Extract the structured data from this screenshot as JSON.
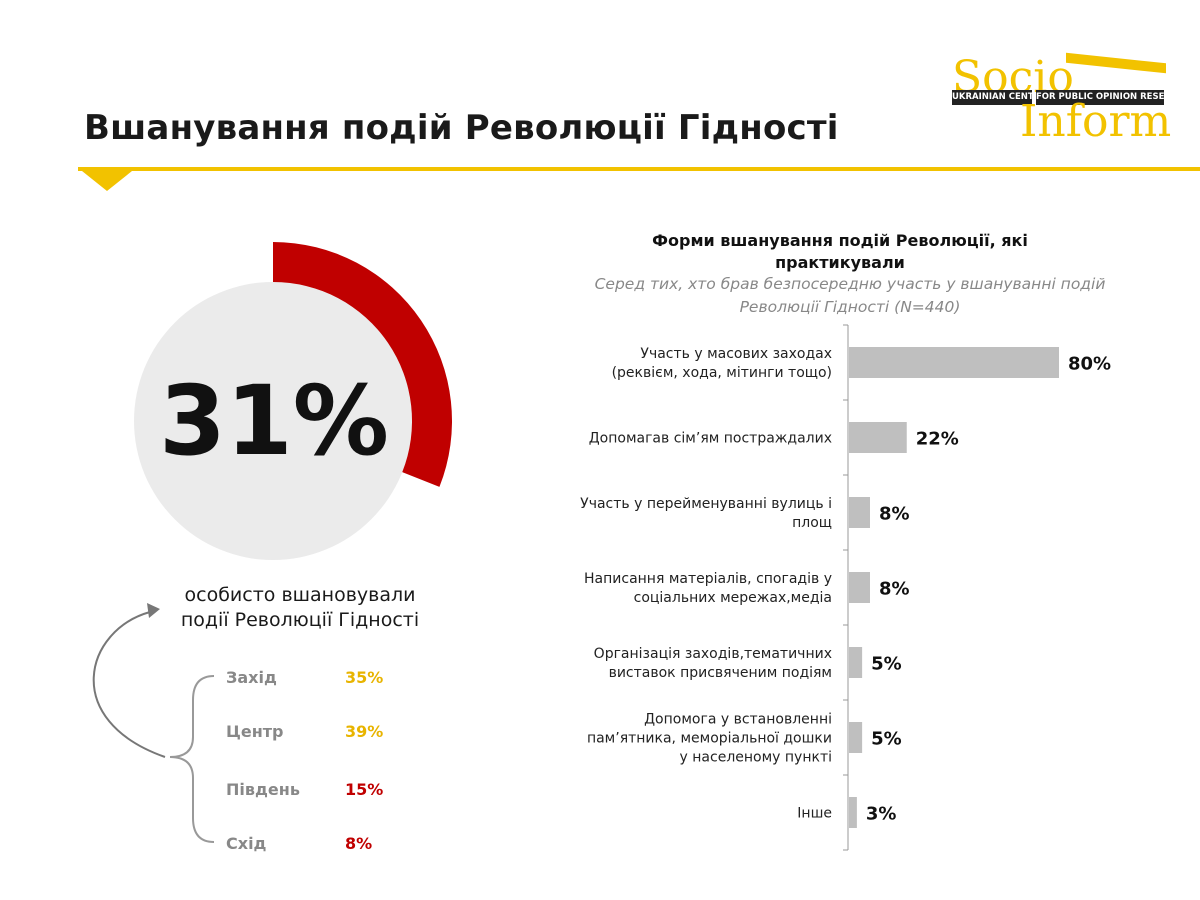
{
  "header": {
    "title": "Вшанування подій Революції Гідності"
  },
  "logo": {
    "top_text": "Socio",
    "bottom_text": "Inform",
    "band_left": "UKRAINIAN CENTER",
    "band_right": "FOR PUBLIC OPINION RESEARCH"
  },
  "overview": {
    "percent_label": "31%",
    "percent_value": 31,
    "caption_line1": "особисто вшановували",
    "caption_line2": "події Революції Гідності",
    "accent_color": "#c00000"
  },
  "regions": [
    {
      "name": "Захід",
      "value": "35%",
      "color": "#e8b400"
    },
    {
      "name": "Центр",
      "value": "39%",
      "color": "#e8b400"
    },
    {
      "name": "Південь",
      "value": "15%",
      "color": "#c00000"
    },
    {
      "name": "Схід",
      "value": "8%",
      "color": "#c00000"
    }
  ],
  "chart_data": {
    "type": "bar",
    "orientation": "horizontal",
    "title": "Форми вшанування подій Революції, які практикували",
    "subtitle": "Серед тих, хто брав безпосередню участь у вшануванні подій Революції Гідності (N=440)",
    "categories": [
      [
        "Участь у масових заходах",
        "(реквієм, хода, мітинги тощо)"
      ],
      [
        "Допомагав сім’ям постраждалих"
      ],
      [
        "Участь у перейменуванні вулиць і",
        "площ"
      ],
      [
        "Написання матеріалів, спогадів у",
        "соціальних мережах,медіа"
      ],
      [
        "Організація заходів,тематичних",
        "виставок присвяченим подіям"
      ],
      [
        "Допомога у  встановленні",
        "пам’ятника, меморіальної дошки",
        "у населеному пункті"
      ],
      [
        "Інше"
      ]
    ],
    "values": [
      80,
      22,
      8,
      8,
      5,
      5,
      3
    ],
    "value_labels": [
      "80%",
      "22%",
      "8%",
      "8%",
      "5%",
      "5%",
      "3%"
    ],
    "unit": "%",
    "xlim": [
      0,
      80
    ],
    "bar_color": "#bfbfbf",
    "grid": false,
    "legend": "none"
  }
}
